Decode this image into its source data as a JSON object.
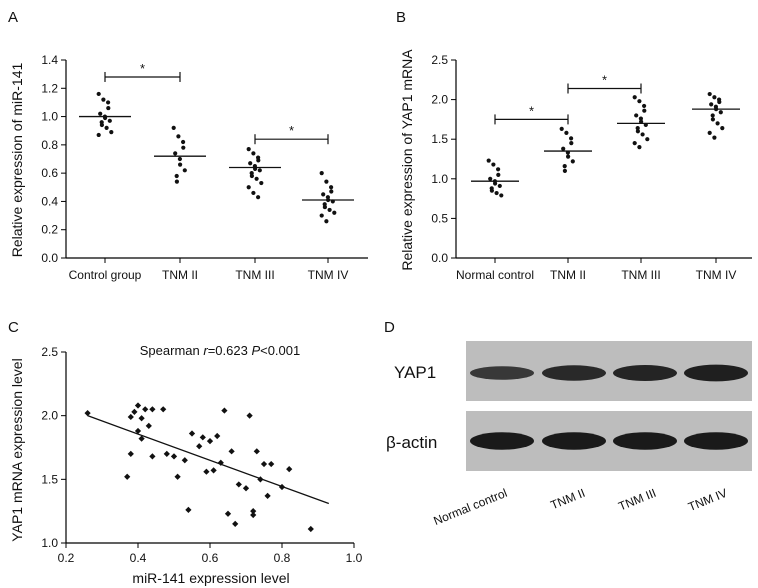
{
  "panels": {
    "A": "A",
    "B": "B",
    "C": "C",
    "D": "D"
  },
  "chart_data": [
    {
      "id": "A",
      "type": "scatter",
      "ylabel": "Relative expression of miR-141",
      "ylim": [
        0,
        1.4
      ],
      "yticks": [
        "0.0",
        "0.2",
        "0.4",
        "0.6",
        "0.8",
        "1.0",
        "1.2",
        "1.4"
      ],
      "categories": [
        "Control group",
        "TNM II",
        "TNM III",
        "TNM IV"
      ],
      "means": [
        1.0,
        0.72,
        0.64,
        0.41
      ],
      "points": [
        [
          1.16,
          1.12,
          1.1,
          1.06,
          1.02,
          1.0,
          0.99,
          0.97,
          0.96,
          0.94,
          0.92,
          0.89,
          0.87
        ],
        [
          0.92,
          0.86,
          0.82,
          0.78,
          0.74,
          0.7,
          0.66,
          0.62,
          0.58,
          0.54
        ],
        [
          0.77,
          0.74,
          0.71,
          0.69,
          0.67,
          0.65,
          0.63,
          0.62,
          0.6,
          0.58,
          0.56,
          0.53,
          0.5,
          0.46,
          0.43
        ],
        [
          0.6,
          0.54,
          0.5,
          0.47,
          0.45,
          0.43,
          0.41,
          0.4,
          0.38,
          0.36,
          0.34,
          0.32,
          0.3,
          0.26
        ]
      ],
      "significance": [
        {
          "from": 0,
          "to": 1,
          "y": 1.28,
          "label": "*"
        },
        {
          "from": 2,
          "to": 3,
          "y": 0.84,
          "label": "*"
        }
      ]
    },
    {
      "id": "B",
      "type": "scatter",
      "ylabel": "Relative expression of YAP1 mRNA",
      "ylim": [
        0,
        2.5
      ],
      "yticks": [
        "0.0",
        "0.5",
        "1.0",
        "1.5",
        "2.0",
        "2.5"
      ],
      "categories": [
        "Normal control",
        "TNM II",
        "TNM III",
        "TNM IV"
      ],
      "means": [
        0.97,
        1.35,
        1.7,
        1.88
      ],
      "points": [
        [
          1.23,
          1.18,
          1.12,
          1.05,
          1.0,
          0.97,
          0.94,
          0.91,
          0.88,
          0.85,
          0.82,
          0.79
        ],
        [
          1.63,
          1.58,
          1.51,
          1.45,
          1.38,
          1.33,
          1.28,
          1.22,
          1.16,
          1.1
        ],
        [
          2.03,
          1.98,
          1.92,
          1.86,
          1.8,
          1.76,
          1.72,
          1.68,
          1.64,
          1.6,
          1.56,
          1.5,
          1.45,
          1.4
        ],
        [
          2.07,
          2.03,
          2.0,
          1.97,
          1.94,
          1.91,
          1.88,
          1.84,
          1.8,
          1.75,
          1.7,
          1.64,
          1.58,
          1.52
        ]
      ],
      "significance": [
        {
          "from": 0,
          "to": 1,
          "y": 1.75,
          "label": "*"
        },
        {
          "from": 1,
          "to": 2,
          "y": 2.14,
          "label": "*"
        }
      ]
    },
    {
      "id": "C",
      "type": "scatter",
      "xlabel": "miR-141 expression level",
      "ylabel": "YAP1 mRNA expression level",
      "xlim": [
        0.2,
        1.0
      ],
      "ylim": [
        1.0,
        2.5
      ],
      "xticks": [
        "0.2",
        "0.4",
        "0.6",
        "0.8",
        "1.0"
      ],
      "yticks": [
        "1.0",
        "1.5",
        "2.0",
        "2.5"
      ],
      "annotation_prefix": "Spearman ",
      "annotation_r": "r",
      "annotation_rval": "=0.623 ",
      "annotation_p": "P",
      "annotation_pval": "<0.001",
      "fit_line": {
        "x": [
          0.26,
          0.93
        ],
        "y": [
          2.0,
          1.31
        ]
      },
      "points": [
        [
          0.26,
          2.02
        ],
        [
          0.37,
          1.52
        ],
        [
          0.38,
          1.99
        ],
        [
          0.38,
          1.7
        ],
        [
          0.39,
          2.03
        ],
        [
          0.4,
          2.08
        ],
        [
          0.41,
          1.98
        ],
        [
          0.41,
          1.82
        ],
        [
          0.42,
          2.05
        ],
        [
          0.43,
          1.92
        ],
        [
          0.44,
          2.05
        ],
        [
          0.44,
          1.68
        ],
        [
          0.4,
          1.88
        ],
        [
          0.47,
          2.05
        ],
        [
          0.48,
          1.7
        ],
        [
          0.5,
          1.68
        ],
        [
          0.51,
          1.52
        ],
        [
          0.53,
          1.65
        ],
        [
          0.54,
          1.26
        ],
        [
          0.55,
          1.86
        ],
        [
          0.57,
          1.76
        ],
        [
          0.58,
          1.83
        ],
        [
          0.59,
          1.56
        ],
        [
          0.6,
          1.8
        ],
        [
          0.61,
          1.57
        ],
        [
          0.62,
          1.84
        ],
        [
          0.63,
          1.63
        ],
        [
          0.64,
          2.04
        ],
        [
          0.65,
          1.23
        ],
        [
          0.66,
          1.72
        ],
        [
          0.67,
          1.15
        ],
        [
          0.68,
          1.46
        ],
        [
          0.7,
          1.43
        ],
        [
          0.71,
          2.0
        ],
        [
          0.72,
          1.25
        ],
        [
          0.72,
          1.22
        ],
        [
          0.73,
          1.72
        ],
        [
          0.74,
          1.5
        ],
        [
          0.75,
          1.62
        ],
        [
          0.76,
          1.37
        ],
        [
          0.77,
          1.62
        ],
        [
          0.8,
          1.44
        ],
        [
          0.82,
          1.58
        ],
        [
          0.88,
          1.11
        ]
      ]
    }
  ],
  "blot": {
    "rows": [
      "YAP1",
      "β-actin"
    ],
    "lanes": [
      "Normal control",
      "TNM II",
      "TNM III",
      "TNM IV"
    ],
    "band_intensity": {
      "YAP1": [
        0.55,
        0.75,
        0.8,
        0.88
      ],
      "β-actin": [
        0.95,
        0.95,
        0.95,
        0.95
      ]
    },
    "colors": {
      "membrane": "#bdbdbd",
      "band": "#151515"
    }
  }
}
